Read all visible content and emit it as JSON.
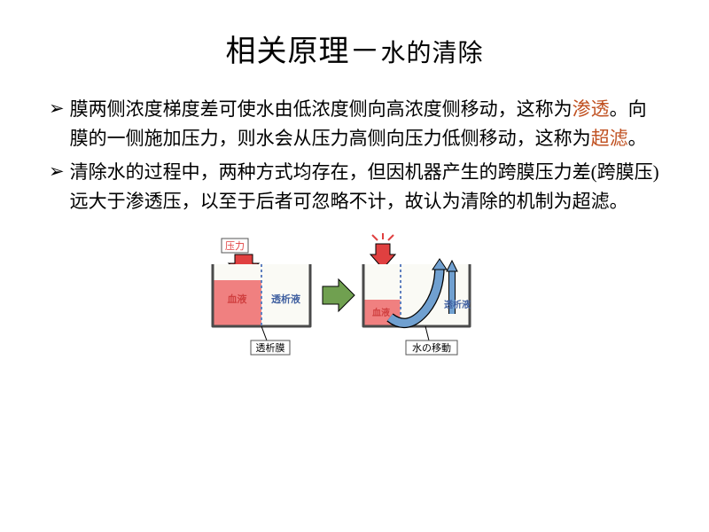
{
  "title": {
    "main": "相关原理－",
    "sub": "水的清除"
  },
  "bullets": [
    {
      "segments": [
        {
          "text": "膜两侧浓度梯度差可使水由低浓度侧向高浓度侧移动，这称为",
          "color": "#000000"
        },
        {
          "text": "渗透",
          "color": "#c05020"
        },
        {
          "text": "。向膜的一侧施加压力，则水会从压力高侧向压力低侧移动，这称为",
          "color": "#000000"
        },
        {
          "text": "超滤",
          "color": "#c05020"
        },
        {
          "text": "。",
          "color": "#000000"
        }
      ]
    },
    {
      "segments": [
        {
          "text": "清除水的过程中，两种方式均存在，但因机器产生的跨膜压力差(跨膜压)远大于渗透压，以至于后者可忽略不计，故认为清除的机制为超滤。",
          "color": "#000000"
        }
      ]
    }
  ],
  "diagram": {
    "labels": {
      "pressure": "压力",
      "blood": "血液",
      "dialysate": "透析液",
      "membrane": "透析膜",
      "water_move": "水の移動"
    },
    "colors": {
      "container_outline": "#4a4a4a",
      "container_fill": "#fafaf5",
      "blood_fill": "#f08080",
      "blood_text": "#d04040",
      "dialysate_text": "#4060a0",
      "membrane_line": "#6080c0",
      "arrow_red": "#e04040",
      "arrow_green": "#70a050",
      "arrow_blue": "#70a0d0",
      "label_box": "#ffffff",
      "label_border": "#555555",
      "black": "#000000"
    },
    "stroke_width": 3,
    "font_size": 11
  }
}
